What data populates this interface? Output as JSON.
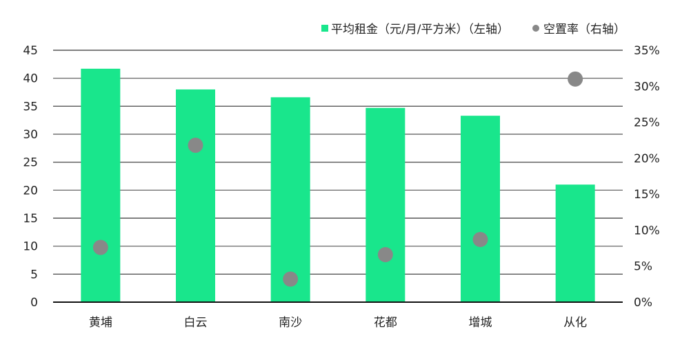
{
  "chart_data": {
    "type": "bar",
    "title": "",
    "categories": [
      "黄埔",
      "白云",
      "南沙",
      "花都",
      "增城",
      "从化"
    ],
    "series": [
      {
        "name": "平均租金（元/月/平方米）（左轴）",
        "type": "bar",
        "axis": "left",
        "color": "#19e68c",
        "values": [
          41.7,
          38.0,
          36.6,
          34.7,
          33.3,
          21.0
        ]
      },
      {
        "name": "空置率（右轴）",
        "type": "scatter",
        "axis": "right",
        "color": "#888888",
        "values": [
          7.6,
          21.8,
          3.2,
          6.6,
          8.7,
          31.0
        ],
        "unit": "%"
      }
    ],
    "xlabel": "",
    "ylabel": "",
    "ylim": [
      0,
      45
    ],
    "y_ticks": [
      "0",
      "5",
      "10",
      "15",
      "20",
      "25",
      "30",
      "35",
      "40",
      "45"
    ],
    "y2lim": [
      0,
      35
    ],
    "y2_ticks": [
      "0%",
      "5%",
      "10%",
      "15%",
      "20%",
      "25%",
      "30%",
      "35%"
    ],
    "grid": true,
    "legend_position": "top-right"
  },
  "legend": {
    "items": [
      {
        "label": "平均租金（元/月/平方米）（左轴）",
        "marker": "square",
        "color": "#19e68c"
      },
      {
        "label": "空置率（右轴）",
        "marker": "circle",
        "color": "#888888"
      }
    ]
  }
}
